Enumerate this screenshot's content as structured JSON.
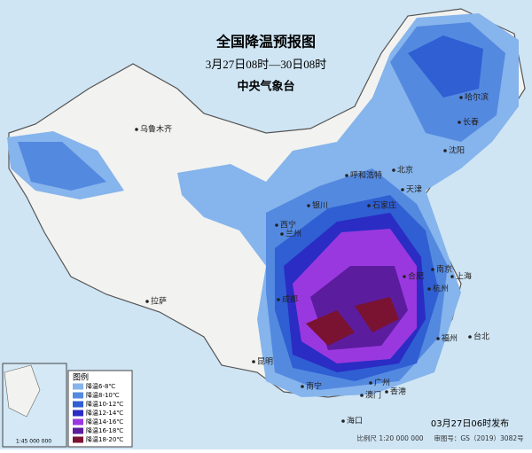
{
  "header": {
    "title": "全国降温预报图",
    "subtitle": "3月27日08时—30日08时",
    "issuer": "中央气象台"
  },
  "legend": {
    "title": "图例",
    "items": [
      {
        "label": "降温6-8℃",
        "color": "#86b4ec"
      },
      {
        "label": "降温8-10℃",
        "color": "#5489e0"
      },
      {
        "label": "降温10-12℃",
        "color": "#2f5fd2"
      },
      {
        "label": "降温12-14℃",
        "color": "#2a2cc4"
      },
      {
        "label": "降温14-16℃",
        "color": "#9a38e0"
      },
      {
        "label": "降温16-18℃",
        "color": "#5c1c9e"
      },
      {
        "label": "降温18-20℃",
        "color": "#7a1232"
      }
    ]
  },
  "cities": [
    "乌鲁木齐",
    "哈尔滨",
    "长春",
    "沈阳",
    "北京",
    "天津",
    "呼和浩特",
    "银川",
    "石家庄",
    "西宁",
    "兰州",
    "拉萨",
    "成都",
    "昆明",
    "南宁",
    "广州",
    "澳门",
    "香港",
    "海口",
    "台北",
    "福州",
    "合肥",
    "南京",
    "上海",
    "杭州"
  ],
  "inset": {
    "scale": "1:45 000 000"
  },
  "footer": {
    "issued": "03月27日06时发布",
    "scale": "比例尺 1:20 000 000",
    "approval": "审图号：GS（2019）3082号"
  }
}
